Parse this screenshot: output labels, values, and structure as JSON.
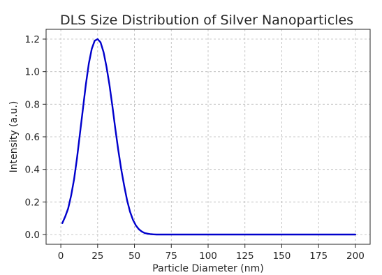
{
  "chart_data": {
    "type": "line",
    "title": "DLS Size Distribution of Silver Nanoparticles",
    "xlabel": "Particle Diameter (nm)",
    "ylabel": "Intensity (a.u.)",
    "xlim": [
      -10,
      210
    ],
    "ylim": [
      -0.06,
      1.26
    ],
    "xticks": [
      0,
      25,
      50,
      75,
      100,
      125,
      150,
      175,
      200
    ],
    "yticks": [
      0.0,
      0.2,
      0.4,
      0.6,
      0.8,
      1.0,
      1.2
    ],
    "xtick_labels": [
      "0",
      "25",
      "50",
      "75",
      "100",
      "125",
      "150",
      "175",
      "200"
    ],
    "ytick_labels": [
      "0.0",
      "0.2",
      "0.4",
      "0.6",
      "0.8",
      "1.0",
      "1.2"
    ],
    "grid": true,
    "legend": "none",
    "series": [
      {
        "color": "#0000cc",
        "x": [
          1,
          3,
          5,
          7,
          9,
          11,
          13,
          15,
          17,
          19,
          21,
          23,
          25,
          27,
          29,
          31,
          33,
          35,
          37,
          39,
          41,
          43,
          45,
          47,
          49,
          51,
          53,
          55,
          57,
          59,
          61,
          63,
          65,
          70,
          80,
          100,
          125,
          150,
          175,
          200
        ],
        "y": [
          0.07,
          0.11,
          0.16,
          0.24,
          0.34,
          0.47,
          0.62,
          0.77,
          0.92,
          1.05,
          1.14,
          1.19,
          1.2,
          1.18,
          1.12,
          1.03,
          0.92,
          0.79,
          0.65,
          0.52,
          0.4,
          0.3,
          0.21,
          0.14,
          0.09,
          0.055,
          0.032,
          0.018,
          0.009,
          0.005,
          0.002,
          0.001,
          0.0,
          0.0,
          0.0,
          0.0,
          0.0,
          0.0,
          0.0,
          0.0
        ]
      }
    ]
  }
}
